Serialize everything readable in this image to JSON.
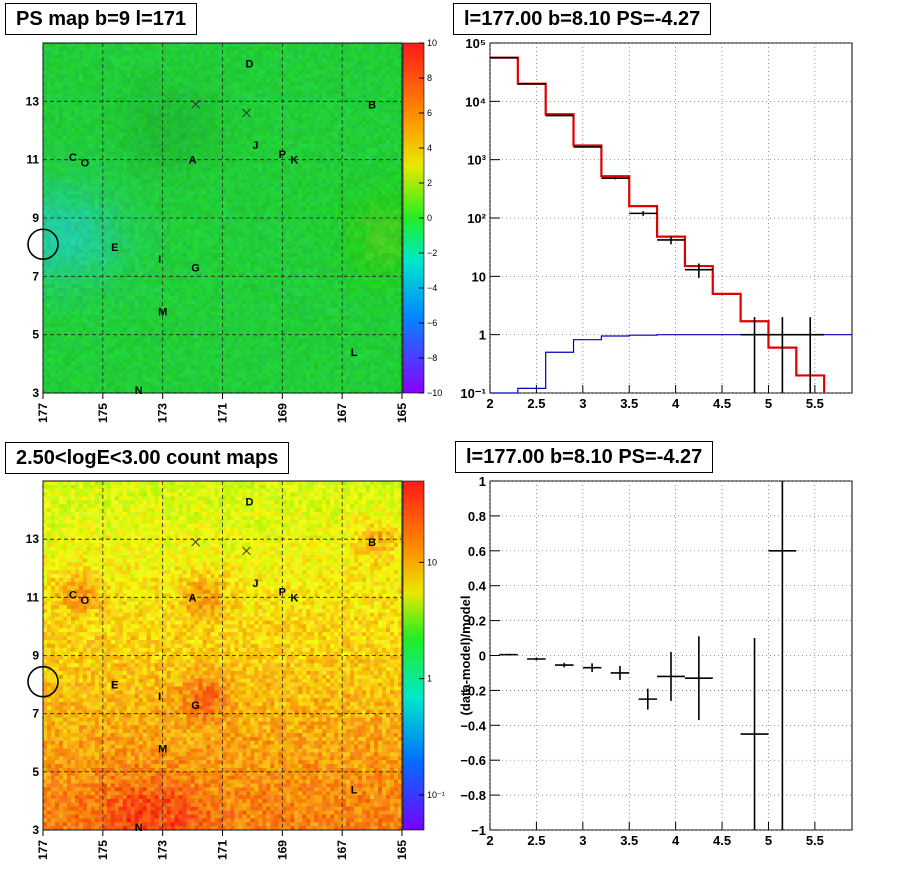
{
  "titles": {
    "map1": "PS map b=9 l=171",
    "spectrum": "l=177.00 b=8.10 PS=-4.27",
    "map2": "2.50<logE<3.00 count maps",
    "residual": "l=177.00 b=8.10 PS=-4.27"
  },
  "colors": {
    "data": "#000000",
    "model": "#e00000",
    "background_model": "#0000c0",
    "grid": "#555555",
    "psmap_base": "#22dd33",
    "countmap_base": "#e8b820"
  },
  "chart_data": [
    {
      "type": "heatmap",
      "title": "PS map b=9 l=171",
      "x_ticks": [
        "177",
        "175",
        "173",
        "171",
        "169",
        "167",
        "165"
      ],
      "y_ticks": [
        "3",
        "5",
        "7",
        "9",
        "11",
        "13"
      ],
      "xlim": [
        177,
        165
      ],
      "ylim": [
        3,
        15
      ],
      "color_scale": {
        "scale": "linear",
        "range": [
          -10,
          10
        ],
        "ticks": [
          "10",
          "8",
          "6",
          "4",
          "2",
          "0",
          "−2",
          "−4",
          "−6",
          "−8",
          "−10"
        ]
      },
      "source_labels": [
        {
          "label": "D",
          "l": 170.1,
          "b": 14.3
        },
        {
          "label": "B",
          "l": 166.0,
          "b": 12.9
        },
        {
          "label": "J",
          "l": 169.9,
          "b": 11.5
        },
        {
          "label": "P",
          "l": 169.0,
          "b": 11.2
        },
        {
          "label": "K",
          "l": 168.6,
          "b": 11.0
        },
        {
          "label": "C",
          "l": 176.0,
          "b": 11.1
        },
        {
          "label": "O",
          "l": 175.6,
          "b": 10.9
        },
        {
          "label": "A",
          "l": 172.0,
          "b": 11.0
        },
        {
          "label": "E",
          "l": 174.6,
          "b": 8.0
        },
        {
          "label": "I",
          "l": 173.1,
          "b": 7.6
        },
        {
          "label": "G",
          "l": 171.9,
          "b": 7.3
        },
        {
          "label": "M",
          "l": 173.0,
          "b": 5.8
        },
        {
          "label": "L",
          "l": 166.6,
          "b": 4.4
        },
        {
          "label": "N",
          "l": 173.8,
          "b": 3.1
        }
      ],
      "cross_markers": [
        {
          "l": 171.9,
          "b": 12.9
        },
        {
          "l": 170.2,
          "b": 12.6
        }
      ],
      "circle_marker": {
        "l": 177.0,
        "b": 8.1
      }
    },
    {
      "type": "line",
      "title": "l=177.00 b=8.10 PS=-4.27",
      "xlim": [
        2,
        5.9
      ],
      "x_ticks": [
        "2",
        "2.5",
        "3",
        "3.5",
        "4",
        "4.5",
        "5",
        "5.5"
      ],
      "yscale": "log",
      "ylim": [
        0.1,
        100000
      ],
      "y_ticks": [
        "10⁻¹",
        "1",
        "10",
        "10²",
        "10³",
        "10⁴",
        "10⁵"
      ],
      "grid": true,
      "series": [
        {
          "style": "histogram",
          "color": "red",
          "bin_edges": [
            2.0,
            2.3,
            2.6,
            2.9,
            3.2,
            3.5,
            3.8,
            4.1,
            4.4,
            4.7,
            5.0,
            5.3,
            5.6
          ],
          "values": [
            56000,
            20000,
            6000,
            1750,
            520,
            160,
            48,
            15,
            5,
            1.7,
            0.6,
            0.2
          ]
        },
        {
          "style": "histogram",
          "color": "blue",
          "bin_edges": [
            2.0,
            2.3,
            2.6,
            2.9,
            3.2,
            3.5,
            3.8,
            4.1,
            4.4,
            4.7,
            5.0,
            5.3,
            5.6,
            5.9
          ],
          "values": [
            0.1,
            0.12,
            0.5,
            0.82,
            0.95,
            0.98,
            1.0,
            1.0,
            1.0,
            1.0,
            1.0,
            1.0,
            1.0
          ]
        },
        {
          "style": "points",
          "color": "black",
          "x": [
            2.15,
            2.45,
            2.75,
            3.05,
            3.35,
            3.65,
            3.95,
            4.25,
            4.55,
            4.85,
            5.15,
            5.45
          ],
          "y": [
            56000,
            20000,
            5700,
            1650,
            480,
            120,
            42,
            13,
            0,
            1,
            1,
            1
          ],
          "y_err": [
            240,
            140,
            75,
            40,
            22,
            11,
            6.5,
            3.6,
            0,
            1,
            1,
            1
          ]
        }
      ]
    },
    {
      "type": "heatmap",
      "title": "2.50<logE<3.00 count maps",
      "x_ticks": [
        "177",
        "175",
        "173",
        "171",
        "169",
        "167",
        "165"
      ],
      "y_ticks": [
        "3",
        "5",
        "7",
        "9",
        "11",
        "13"
      ],
      "xlim": [
        177,
        165
      ],
      "ylim": [
        3,
        15
      ],
      "color_scale": {
        "scale": "log",
        "range": [
          0.05,
          50
        ],
        "ticks": [
          "10",
          "1",
          "10⁻¹"
        ]
      },
      "source_labels": [
        {
          "label": "D",
          "l": 170.1,
          "b": 14.3
        },
        {
          "label": "B",
          "l": 166.0,
          "b": 12.9
        },
        {
          "label": "J",
          "l": 169.9,
          "b": 11.5
        },
        {
          "label": "P",
          "l": 169.0,
          "b": 11.2
        },
        {
          "label": "K",
          "l": 168.6,
          "b": 11.0
        },
        {
          "label": "C",
          "l": 176.0,
          "b": 11.1
        },
        {
          "label": "O",
          "l": 175.6,
          "b": 10.9
        },
        {
          "label": "A",
          "l": 172.0,
          "b": 11.0
        },
        {
          "label": "E",
          "l": 174.6,
          "b": 8.0
        },
        {
          "label": "I",
          "l": 173.1,
          "b": 7.6
        },
        {
          "label": "G",
          "l": 171.9,
          "b": 7.3
        },
        {
          "label": "M",
          "l": 173.0,
          "b": 5.8
        },
        {
          "label": "L",
          "l": 166.6,
          "b": 4.4
        },
        {
          "label": "N",
          "l": 173.8,
          "b": 3.1
        }
      ],
      "cross_markers": [
        {
          "l": 171.9,
          "b": 12.9
        },
        {
          "l": 170.2,
          "b": 12.6
        }
      ],
      "circle_marker": {
        "l": 177.0,
        "b": 8.1
      }
    },
    {
      "type": "scatter",
      "title": "l=177.00 b=8.10 PS=-4.27",
      "ylabel": "(data-model)/model",
      "xlim": [
        2,
        5.9
      ],
      "ylim": [
        -1,
        1
      ],
      "x_ticks": [
        "2",
        "2.5",
        "3",
        "3.5",
        "4",
        "4.5",
        "5",
        "5.5"
      ],
      "y_ticks": [
        "−1",
        "−0.8",
        "−0.6",
        "−0.4",
        "−0.2",
        "0",
        "0.2",
        "0.4",
        "0.6",
        "0.8",
        "1"
      ],
      "grid": true,
      "points": [
        {
          "x": 2.2,
          "y": 0.005,
          "xerr": 0.1,
          "yerr": 0.005
        },
        {
          "x": 2.5,
          "y": -0.02,
          "xerr": 0.1,
          "yerr": 0.008
        },
        {
          "x": 2.8,
          "y": -0.055,
          "xerr": 0.1,
          "yerr": 0.013
        },
        {
          "x": 3.1,
          "y": -0.07,
          "xerr": 0.1,
          "yerr": 0.025
        },
        {
          "x": 3.4,
          "y": -0.1,
          "xerr": 0.1,
          "yerr": 0.04
        },
        {
          "x": 3.7,
          "y": -0.25,
          "xerr": 0.1,
          "yerr": 0.06
        },
        {
          "x": 3.95,
          "y": -0.12,
          "xerr": 0.15,
          "yerr": 0.14
        },
        {
          "x": 4.25,
          "y": -0.13,
          "xerr": 0.15,
          "yerr": 0.24
        },
        {
          "x": 4.85,
          "y": -0.45,
          "xerr": 0.15,
          "yerr": 0.55
        },
        {
          "x": 5.15,
          "y": 0.6,
          "xerr": 0.15,
          "yerr": 1.6
        }
      ]
    }
  ]
}
